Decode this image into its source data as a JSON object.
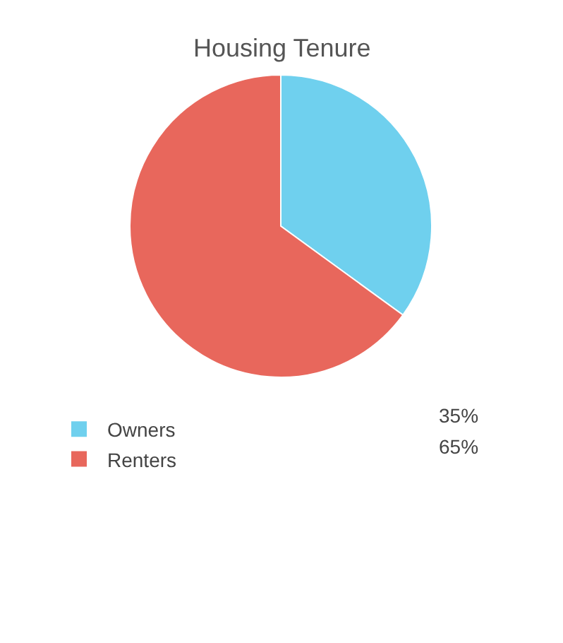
{
  "chart_data": {
    "type": "pie",
    "title": "Housing Tenure",
    "categories": [
      "Owners",
      "Renters"
    ],
    "values": [
      35,
      65
    ],
    "colors": [
      "#6fd0ee",
      "#e8675c"
    ],
    "value_labels": [
      "35%",
      "65%"
    ],
    "legend": "bottom"
  }
}
